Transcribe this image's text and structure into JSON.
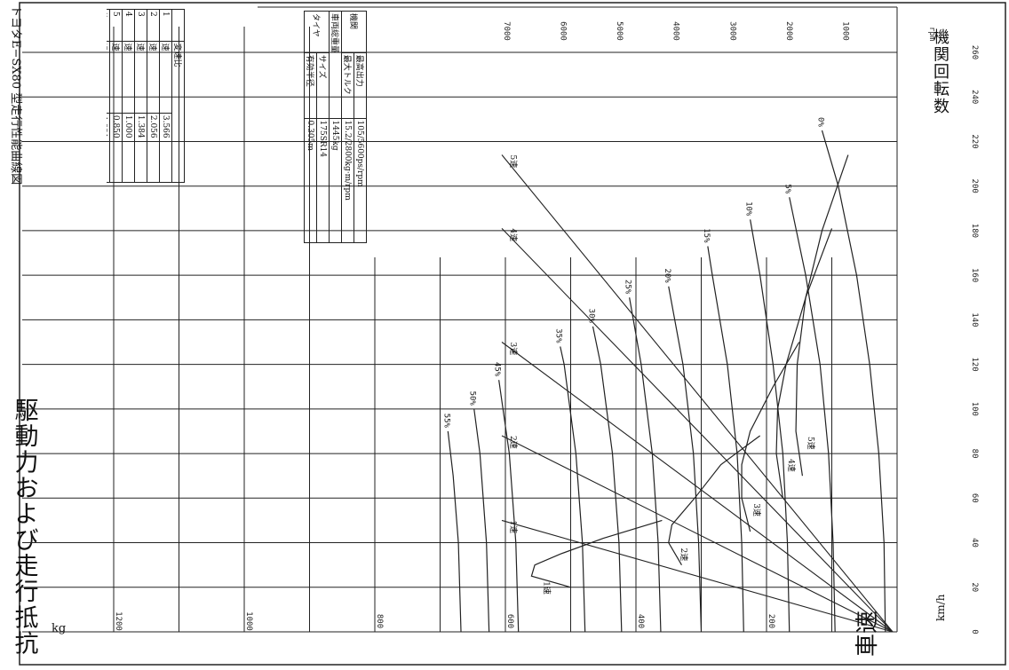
{
  "chart_data": {
    "type": "line",
    "title": "トヨタE−SX80 型走行性能曲線図",
    "xlabel": "車速",
    "xunit": "km/h",
    "ylabel": "駆動力および走行抵抗",
    "yunit": "kg",
    "rpm_label": "機関回転数",
    "rpm_unit": "rpm",
    "xlim": [
      0,
      260
    ],
    "ylim": [
      0,
      1200
    ],
    "x_ticks": [
      0,
      20,
      40,
      60,
      80,
      100,
      120,
      140,
      160,
      180,
      200,
      220,
      240,
      260
    ],
    "y_ticks": [
      200,
      400,
      600,
      800,
      1000,
      1200
    ],
    "rpm_ticks": [
      1000,
      2000,
      3000,
      4000,
      5000,
      6000,
      7000
    ],
    "gear_lines": [
      {
        "name": "1速",
        "speed_at_7000": 50
      },
      {
        "name": "2速",
        "speed_at_7000": 88
      },
      {
        "name": "3速",
        "speed_at_7000": 130
      },
      {
        "name": "4速",
        "speed_at_7000": 181
      },
      {
        "name": "5速",
        "speed_at_7000": 214
      }
    ],
    "gear_curve_labels": [
      "1速",
      "2速",
      "3速",
      "4速",
      "5速",
      "後退"
    ],
    "drive_force": [
      {
        "name": "1速",
        "points": [
          [
            20,
            500
          ],
          [
            25,
            560
          ],
          [
            30,
            555
          ],
          [
            35,
            515
          ],
          [
            42,
            450
          ],
          [
            50,
            360
          ]
        ]
      },
      {
        "name": "2速",
        "points": [
          [
            30,
            330
          ],
          [
            40,
            350
          ],
          [
            48,
            345
          ],
          [
            60,
            310
          ],
          [
            75,
            270
          ],
          [
            88,
            210
          ]
        ]
      },
      {
        "name": "3速",
        "points": [
          [
            45,
            225
          ],
          [
            60,
            238
          ],
          [
            75,
            238
          ],
          [
            90,
            225
          ],
          [
            110,
            190
          ],
          [
            130,
            150
          ]
        ]
      },
      {
        "name": "4速",
        "points": [
          [
            60,
            175
          ],
          [
            80,
            185
          ],
          [
            100,
            183
          ],
          [
            120,
            170
          ],
          [
            150,
            140
          ],
          [
            181,
            100
          ]
        ]
      },
      {
        "name": "5速",
        "points": [
          [
            70,
            145
          ],
          [
            90,
            155
          ],
          [
            120,
            153
          ],
          [
            150,
            140
          ],
          [
            180,
            115
          ],
          [
            214,
            75
          ]
        ]
      }
    ],
    "resistance_curves": [
      {
        "name": "0%",
        "points": [
          [
            0,
            18
          ],
          [
            40,
            20
          ],
          [
            80,
            28
          ],
          [
            120,
            42
          ],
          [
            160,
            62
          ],
          [
            200,
            90
          ],
          [
            225,
            115
          ]
        ]
      },
      {
        "name": "5%",
        "points": [
          [
            0,
            95
          ],
          [
            40,
            98
          ],
          [
            80,
            105
          ],
          [
            120,
            118
          ],
          [
            160,
            140
          ],
          [
            195,
            165
          ]
        ]
      },
      {
        "name": "10%",
        "points": [
          [
            0,
            165
          ],
          [
            40,
            168
          ],
          [
            80,
            175
          ],
          [
            120,
            190
          ],
          [
            160,
            210
          ],
          [
            185,
            225
          ]
        ]
      },
      {
        "name": "15%",
        "points": [
          [
            0,
            235
          ],
          [
            40,
            238
          ],
          [
            80,
            245
          ],
          [
            120,
            260
          ],
          [
            160,
            283
          ],
          [
            173,
            290
          ]
        ]
      },
      {
        "name": "20%",
        "points": [
          [
            0,
            300
          ],
          [
            40,
            304
          ],
          [
            80,
            312
          ],
          [
            120,
            328
          ],
          [
            155,
            350
          ]
        ]
      },
      {
        "name": "25%",
        "points": [
          [
            0,
            362
          ],
          [
            40,
            366
          ],
          [
            80,
            375
          ],
          [
            120,
            392
          ],
          [
            150,
            410
          ]
        ]
      },
      {
        "name": "30%",
        "points": [
          [
            0,
            422
          ],
          [
            40,
            426
          ],
          [
            80,
            436
          ],
          [
            120,
            454
          ],
          [
            137,
            466
          ]
        ]
      },
      {
        "name": "35%",
        "points": [
          [
            0,
            478
          ],
          [
            40,
            482
          ],
          [
            80,
            492
          ],
          [
            120,
            510
          ],
          [
            128,
            516
          ]
        ]
      },
      {
        "name": "45%",
        "points": [
          [
            0,
            580
          ],
          [
            40,
            584
          ],
          [
            80,
            594
          ],
          [
            113,
            610
          ]
        ]
      },
      {
        "name": "50%",
        "points": [
          [
            0,
            625
          ],
          [
            40,
            629
          ],
          [
            80,
            639
          ],
          [
            100,
            648
          ]
        ]
      },
      {
        "name": "55%",
        "points": [
          [
            0,
            668
          ],
          [
            40,
            672
          ],
          [
            70,
            680
          ],
          [
            90,
            688
          ]
        ]
      }
    ],
    "specs": {
      "engine_label": "機関",
      "max_power_label": "最高出力",
      "max_power": "105/5600ps/rpm",
      "max_torque_label": "最大トルク",
      "max_torque": "15.2/2800kg·m/rpm",
      "weight_label": "車両総重量",
      "weight": "1445kg",
      "tire_label": "タイヤ",
      "size_label": "サイズ",
      "size": "175SR14",
      "radius_label": "有効半径",
      "radius": "0.305m"
    },
    "gear_ratio_header": "変速比",
    "gear_ratios": [
      {
        "n": "1",
        "label": "速",
        "ratio": "3.566"
      },
      {
        "n": "2",
        "label": "速",
        "ratio": "2.056"
      },
      {
        "n": "3",
        "label": "速",
        "ratio": "1.384"
      },
      {
        "n": "4",
        "label": "速",
        "ratio": "1.000"
      },
      {
        "n": "5",
        "label": "速",
        "ratio": "0.850"
      },
      {
        "n": "後",
        "label": "退",
        "ratio": "4.091"
      },
      {
        "n": "",
        "label": "減速比",
        "ratio": "3.727"
      }
    ]
  }
}
